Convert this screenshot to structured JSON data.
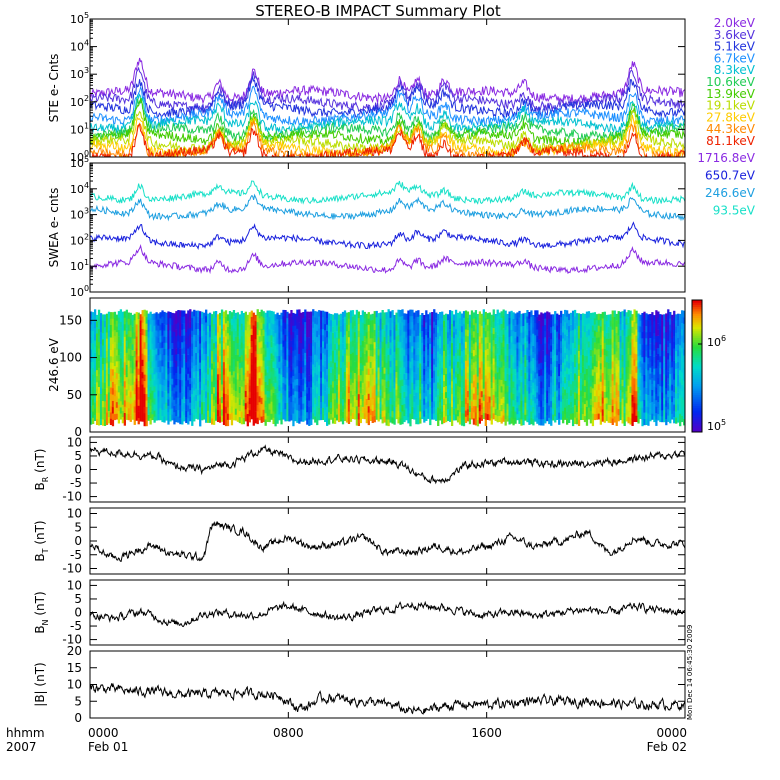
{
  "title": "STEREO-B IMPACT Summary Plot",
  "time_axis": {
    "row1_label": "hhmm",
    "row2_label": "2007",
    "ticks": [
      {
        "value": 0,
        "time": "0000",
        "date": "Feb 01"
      },
      {
        "value": 8,
        "time": "0800",
        "date": ""
      },
      {
        "value": 16,
        "time": "1600",
        "date": ""
      },
      {
        "value": 24,
        "time": "0000",
        "date": "Feb 02"
      }
    ],
    "range_hours": [
      0,
      24
    ]
  },
  "side_stamp": "Mon Dec 14 06:45:30 2009",
  "chart_data": [
    {
      "type": "line",
      "name": "ste",
      "ylabel": "STE e- Cnts",
      "yscale": "log",
      "ylim": [
        1,
        100000
      ],
      "ytick_exponents": [
        0,
        1,
        2,
        3,
        4,
        5
      ],
      "legend_placement": "right",
      "series": [
        {
          "name": "2.0keV",
          "color": "#8a2be2",
          "base": 180
        },
        {
          "name": "3.6keV",
          "color": "#5533dd",
          "base": 95
        },
        {
          "name": "5.1keV",
          "color": "#2233dd",
          "base": 55
        },
        {
          "name": "6.7keV",
          "color": "#1e90ff",
          "base": 28
        },
        {
          "name": "8.3keV",
          "color": "#00c0d0",
          "base": 15
        },
        {
          "name": "10.6keV",
          "color": "#22cc55",
          "base": 8
        },
        {
          "name": "13.9keV",
          "color": "#44cc00",
          "base": 5
        },
        {
          "name": "19.1keV",
          "color": "#bbdd00",
          "base": 3
        },
        {
          "name": "27.8keV",
          "color": "#ffcc00",
          "base": 2
        },
        {
          "name": "44.3keV",
          "color": "#ff8800",
          "base": 1.5
        },
        {
          "name": "81.1keV",
          "color": "#ee2200",
          "base": 1.2
        }
      ]
    },
    {
      "type": "line",
      "name": "swea",
      "ylabel": "SWEA e- cnts",
      "yscale": "log",
      "ylim": [
        1,
        100000
      ],
      "ytick_exponents": [
        0,
        1,
        2,
        3,
        4,
        5
      ],
      "legend_placement": "right",
      "series": [
        {
          "name": "1716.8eV",
          "color": "#8a2be2",
          "base": 10
        },
        {
          "name": "650.7eV",
          "color": "#1a22dd",
          "base": 90
        },
        {
          "name": "246.6eV",
          "color": "#1e9fe0",
          "base": 1200
        },
        {
          "name": "93.5eV",
          "color": "#18e0c8",
          "base": 5000
        }
      ]
    },
    {
      "type": "heatmap",
      "name": "pitch",
      "ylabel": "246.6 eV",
      "ylim": [
        0,
        180
      ],
      "yticks": [
        0,
        50,
        100,
        150
      ],
      "colorbar": {
        "min_exp": 5,
        "max_exp": 6.5,
        "labels": [
          {
            "mantissa": "10",
            "exp": "5"
          },
          {
            "mantissa": "10",
            "exp": "6"
          }
        ]
      }
    },
    {
      "type": "line",
      "name": "br",
      "ylabel_main": "B",
      "ylabel_sub": "R",
      "ylabel_unit": " (nT)",
      "ylim": [
        -12,
        12
      ],
      "yticks": [
        -10,
        -5,
        0,
        5,
        10
      ],
      "keyframes": [
        [
          0,
          7
        ],
        [
          1.5,
          6
        ],
        [
          2.5,
          5
        ],
        [
          3.5,
          1
        ],
        [
          4.5,
          0
        ],
        [
          5.5,
          2
        ],
        [
          7,
          7
        ],
        [
          8.5,
          3
        ],
        [
          10,
          4
        ],
        [
          12,
          3
        ],
        [
          14,
          -4
        ],
        [
          15.5,
          2
        ],
        [
          17,
          3
        ],
        [
          19,
          2
        ],
        [
          21,
          3
        ],
        [
          23,
          5
        ],
        [
          24,
          6
        ]
      ]
    },
    {
      "type": "line",
      "name": "bt",
      "ylabel_main": "B",
      "ylabel_sub": "T",
      "ylabel_unit": " (nT)",
      "ylim": [
        -12,
        12
      ],
      "yticks": [
        -10,
        -5,
        0,
        5,
        10
      ],
      "keyframes": [
        [
          0,
          -2
        ],
        [
          1,
          -6
        ],
        [
          2.5,
          -2
        ],
        [
          3.5,
          -5
        ],
        [
          4.5,
          -6
        ],
        [
          5,
          6
        ],
        [
          6,
          4
        ],
        [
          7,
          -2
        ],
        [
          8,
          1
        ],
        [
          9,
          -2
        ],
        [
          10,
          -1
        ],
        [
          11,
          1
        ],
        [
          12,
          -4
        ],
        [
          13,
          -4
        ],
        [
          14,
          -2
        ],
        [
          15,
          -4
        ],
        [
          16,
          -2
        ],
        [
          17,
          1
        ],
        [
          18,
          -2
        ],
        [
          19,
          0
        ],
        [
          20,
          3
        ],
        [
          21,
          -4
        ],
        [
          22,
          1
        ],
        [
          23,
          -1
        ],
        [
          24,
          -1
        ]
      ]
    },
    {
      "type": "line",
      "name": "bn",
      "ylabel_main": "B",
      "ylabel_sub": "N",
      "ylabel_unit": " (nT)",
      "ylim": [
        -12,
        12
      ],
      "yticks": [
        -10,
        -5,
        0,
        5,
        10
      ],
      "keyframes": [
        [
          0,
          -1
        ],
        [
          1,
          -2
        ],
        [
          2,
          0
        ],
        [
          3.5,
          -4
        ],
        [
          5,
          0
        ],
        [
          6.5,
          -1
        ],
        [
          8,
          2
        ],
        [
          9,
          0
        ],
        [
          10,
          -2
        ],
        [
          12,
          1
        ],
        [
          13,
          3
        ],
        [
          14,
          2
        ],
        [
          16,
          -1
        ],
        [
          17,
          0
        ],
        [
          18,
          -1
        ],
        [
          20,
          1
        ],
        [
          21,
          0
        ],
        [
          22,
          2
        ],
        [
          23,
          1
        ],
        [
          24,
          0
        ]
      ]
    },
    {
      "type": "line",
      "name": "bmag",
      "ylabel_main": "|B|",
      "ylabel_sub": "",
      "ylabel_unit": " (nT)",
      "ylim": [
        0,
        20
      ],
      "yticks": [
        0,
        5,
        10,
        15,
        20
      ],
      "keyframes": [
        [
          0,
          9
        ],
        [
          2,
          8
        ],
        [
          4,
          7
        ],
        [
          6,
          7.5
        ],
        [
          7.5,
          7
        ],
        [
          8.5,
          3
        ],
        [
          9.5,
          6
        ],
        [
          11,
          5
        ],
        [
          12,
          4
        ],
        [
          13,
          2
        ],
        [
          15,
          4
        ],
        [
          16,
          4
        ],
        [
          18,
          5
        ],
        [
          20,
          5
        ],
        [
          22,
          4
        ],
        [
          24,
          4
        ]
      ]
    }
  ]
}
